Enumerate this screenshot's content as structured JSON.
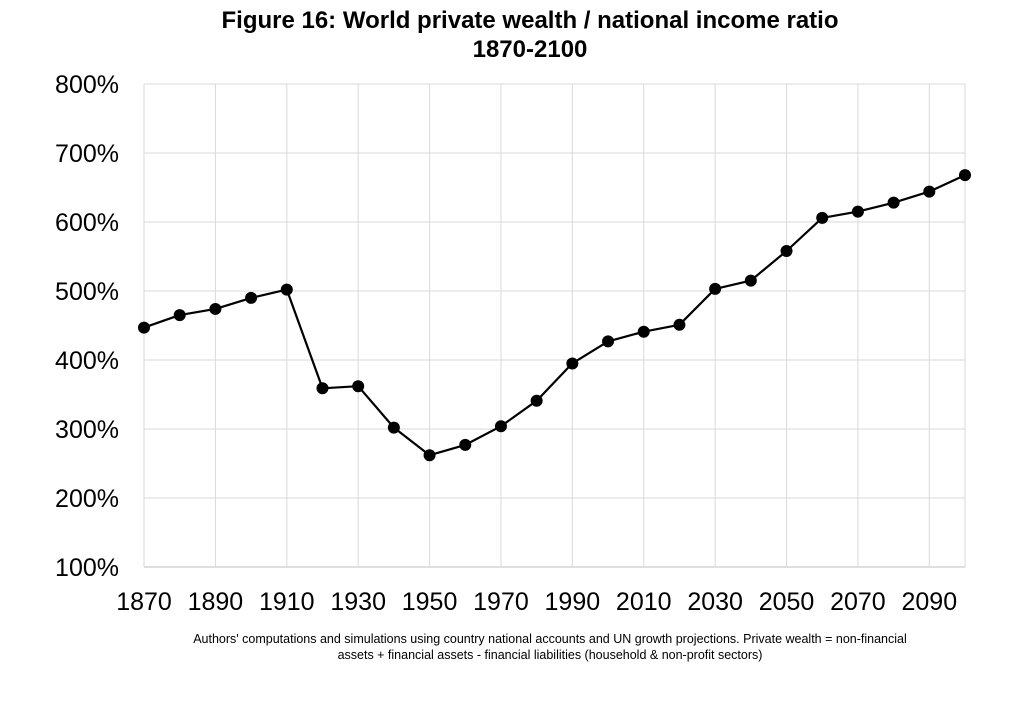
{
  "chart_data": {
    "type": "line",
    "title": "Figure 16: World private wealth / national  income ratio",
    "subtitle": "1870-2100",
    "xlabel": "",
    "ylabel": "",
    "xlim": [
      1870,
      2100
    ],
    "ylim": [
      100,
      800
    ],
    "grid": true,
    "y_ticks": [
      "100%",
      "200%",
      "300%",
      "400%",
      "500%",
      "600%",
      "700%",
      "800%"
    ],
    "y_tick_values": [
      100,
      200,
      300,
      400,
      500,
      600,
      700,
      800
    ],
    "x_ticks": [
      "1870",
      "1890",
      "1910",
      "1930",
      "1950",
      "1970",
      "1990",
      "2010",
      "2030",
      "2050",
      "2070",
      "2090"
    ],
    "x_tick_values": [
      1870,
      1890,
      1910,
      1930,
      1950,
      1970,
      1990,
      2010,
      2030,
      2050,
      2070,
      2090
    ],
    "x_grid_values": [
      1870,
      1890,
      1910,
      1930,
      1950,
      1970,
      1990,
      2010,
      2030,
      2050,
      2070,
      2090,
      2100
    ],
    "series": [
      {
        "name": "World private wealth / national income ratio",
        "x": [
          1870,
          1880,
          1890,
          1900,
          1910,
          1920,
          1930,
          1940,
          1950,
          1960,
          1970,
          1980,
          1990,
          2000,
          2010,
          2020,
          2030,
          2040,
          2050,
          2060,
          2070,
          2080,
          2090,
          2100
        ],
        "values": [
          447,
          465,
          474,
          490,
          502,
          359,
          362,
          302,
          262,
          277,
          304,
          341,
          395,
          427,
          441,
          451,
          503,
          515,
          558,
          606,
          615,
          628,
          644,
          668
        ]
      }
    ]
  },
  "note": {
    "line1": "Authors' computations and simulations using country national accounts and UN growth projections. Private wealth = non-financial",
    "line2": "assets + financial assets - financial liabilities (household & non-profit sectors)"
  },
  "colors": {
    "line": "#000000",
    "grid": "#d9d9d9",
    "marker": "#000000"
  }
}
